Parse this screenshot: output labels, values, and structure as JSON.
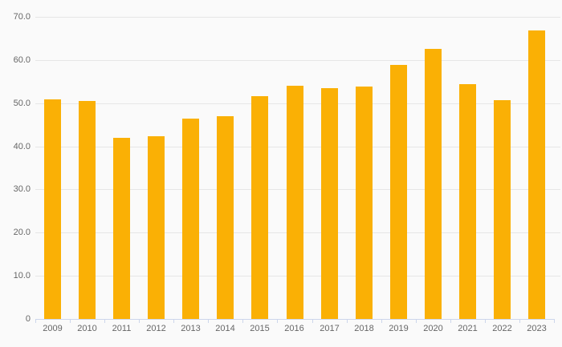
{
  "chart": {
    "colors": {
      "background": "#fafafa",
      "bar": "#fab005",
      "gridline": "#e6e6e6",
      "axis": "#ccd6eb",
      "label": "#666666"
    }
  },
  "chart_data": {
    "type": "bar",
    "title": "",
    "xlabel": "",
    "ylabel": "",
    "categories": [
      "2009",
      "2010",
      "2011",
      "2012",
      "2013",
      "2014",
      "2015",
      "2016",
      "2017",
      "2018",
      "2019",
      "2020",
      "2021",
      "2022",
      "2023"
    ],
    "values": [
      50.9,
      50.5,
      42.0,
      42.4,
      46.5,
      47.0,
      51.6,
      54.0,
      53.4,
      53.9,
      58.9,
      62.5,
      54.4,
      50.7,
      66.8
    ],
    "ylim": [
      0,
      70
    ],
    "y_ticks": [
      0,
      10,
      20,
      30,
      40,
      50,
      60,
      70
    ],
    "y_tick_labels": [
      "0",
      "10.0",
      "20.0",
      "30.0",
      "40.0",
      "50.0",
      "60.0",
      "70.0"
    ],
    "grid": true,
    "legend": false
  }
}
